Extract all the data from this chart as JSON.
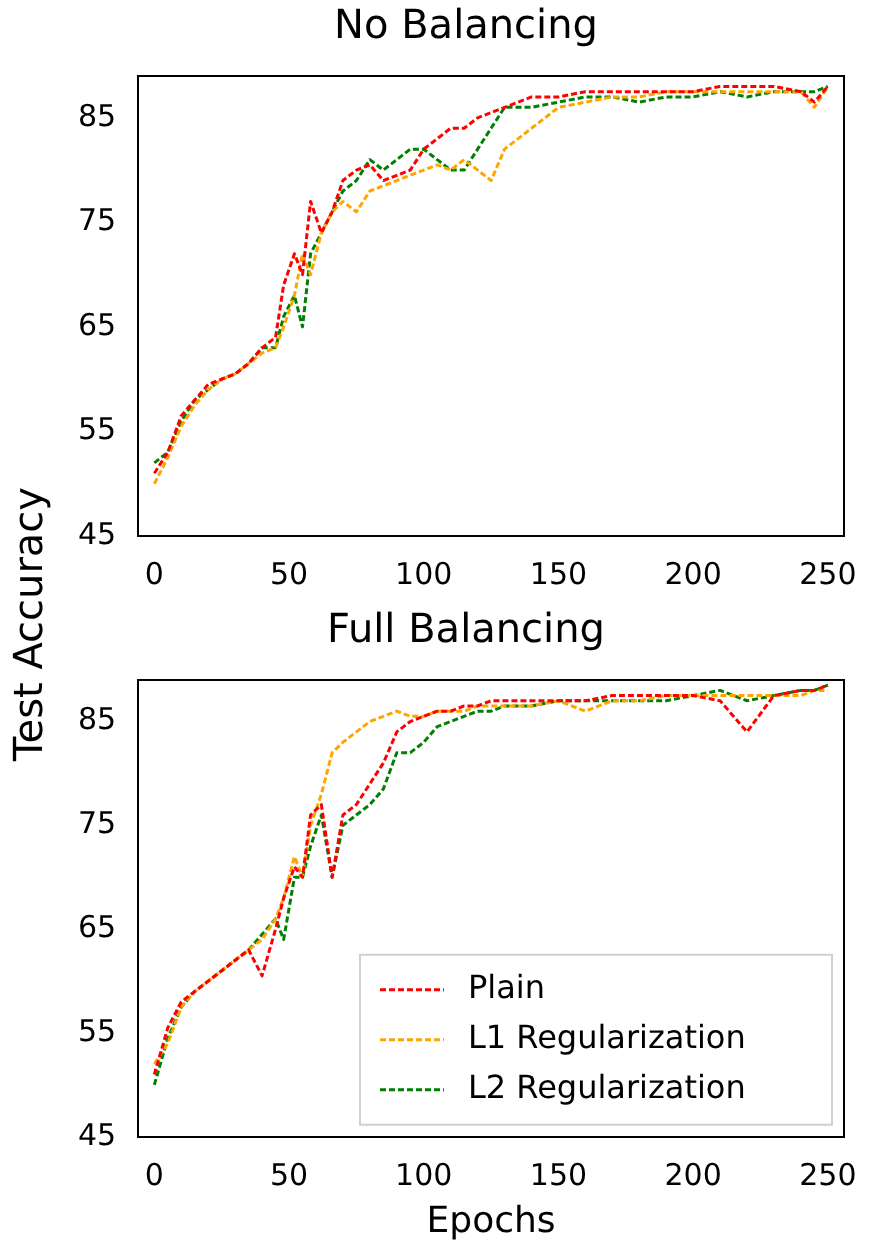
{
  "chart_data": [
    {
      "type": "line",
      "title": "No Balancing",
      "ylabel": "Test Accuracy",
      "x": [
        0,
        5,
        10,
        15,
        20,
        25,
        30,
        35,
        40,
        45,
        48,
        52,
        55,
        58,
        62,
        66,
        70,
        75,
        80,
        85,
        90,
        95,
        100,
        105,
        110,
        115,
        120,
        125,
        130,
        140,
        150,
        160,
        170,
        180,
        190,
        200,
        210,
        220,
        230,
        240,
        245,
        250
      ],
      "series": [
        {
          "color": "#ff0000",
          "values": [
            51,
            53,
            56.5,
            58,
            59.5,
            60,
            60.5,
            61.5,
            63,
            64,
            69,
            72,
            70,
            77,
            74,
            76,
            79,
            80,
            80.5,
            79,
            79.5,
            80,
            82,
            83,
            84,
            84,
            85,
            85.5,
            86,
            87,
            87,
            87.5,
            87.5,
            87.5,
            87.5,
            87.5,
            88,
            88,
            88,
            87.5,
            86.5,
            88
          ]
        },
        {
          "color": "#ffa500",
          "values": [
            50,
            52.5,
            55.5,
            57.5,
            59,
            60,
            60.5,
            61.5,
            62.5,
            63,
            65,
            68,
            72,
            70,
            74,
            76,
            77,
            76,
            78,
            78.5,
            79,
            79.5,
            80,
            80.5,
            80,
            81,
            80,
            79,
            82,
            84,
            86,
            86.5,
            87,
            87,
            87.5,
            87.5,
            87.5,
            87.5,
            87.5,
            87.5,
            86,
            88
          ]
        },
        {
          "color": "#008000",
          "values": [
            52,
            53,
            56,
            58,
            59,
            60,
            60.5,
            61.5,
            63,
            63,
            66,
            68,
            65,
            72,
            74,
            76,
            78,
            79,
            81,
            80,
            81,
            82,
            82,
            81,
            80,
            80,
            82,
            84,
            86,
            86,
            86.5,
            87,
            87,
            86.5,
            87,
            87,
            87.5,
            87,
            87.5,
            87.5,
            87.5,
            88
          ]
        }
      ],
      "xlim": [
        -6,
        256
      ],
      "xticks": [
        0,
        50,
        100,
        150,
        200,
        250
      ],
      "ylim": [
        45,
        89
      ],
      "yticks": [
        45,
        55,
        65,
        75,
        85
      ],
      "grid": false,
      "legend": false,
      "marker": "none",
      "line_style": "dashed"
    },
    {
      "type": "line",
      "title": "Full Balancing",
      "xlabel": "Epochs",
      "x": [
        0,
        5,
        10,
        15,
        20,
        25,
        30,
        35,
        40,
        45,
        48,
        52,
        55,
        58,
        62,
        66,
        70,
        75,
        80,
        85,
        90,
        95,
        100,
        105,
        110,
        115,
        120,
        125,
        130,
        140,
        150,
        160,
        170,
        180,
        190,
        200,
        210,
        220,
        230,
        240,
        245,
        250
      ],
      "series": [
        {
          "name": "Plain",
          "color": "#ff0000",
          "values": [
            51,
            55.5,
            58,
            59,
            60,
            61,
            62,
            63,
            60.5,
            65,
            68,
            71,
            70,
            76,
            77,
            70,
            76,
            77,
            79,
            81,
            84,
            85,
            85.5,
            86,
            86,
            86.5,
            86.5,
            87,
            87,
            87,
            87,
            87,
            87.5,
            87.5,
            87.5,
            87.5,
            87,
            84,
            87.5,
            88,
            88,
            88.5
          ]
        },
        {
          "name": "L1 Regularization",
          "color": "#ffa500",
          "values": [
            52,
            54,
            57.5,
            59,
            60,
            61,
            62,
            63,
            64,
            66,
            68,
            72,
            70,
            75,
            78,
            82,
            83,
            84,
            85,
            85.5,
            86,
            85.5,
            85.5,
            86,
            86,
            86,
            86.5,
            86.5,
            86.5,
            86.5,
            87,
            86,
            87,
            87,
            87.5,
            87.5,
            87.5,
            87.5,
            87.5,
            87.5,
            88,
            88
          ]
        },
        {
          "name": "L2 Regularization",
          "color": "#008000",
          "values": [
            50,
            54.5,
            57.5,
            59,
            60,
            61,
            62,
            63,
            64.5,
            66,
            64,
            70,
            70,
            73,
            76,
            70,
            75,
            76,
            77,
            78.5,
            82,
            82,
            83,
            84.5,
            85,
            85.5,
            86,
            86,
            86.5,
            86.5,
            87,
            87,
            87,
            87,
            87,
            87.5,
            88,
            87,
            87.5,
            88,
            88,
            88.5
          ]
        }
      ],
      "xlim": [
        -6,
        256
      ],
      "xticks": [
        0,
        50,
        100,
        150,
        200,
        250
      ],
      "ylim": [
        45,
        89
      ],
      "yticks": [
        45,
        55,
        65,
        75,
        85
      ],
      "grid": false,
      "legend": "bottom right",
      "marker": "none",
      "line_style": "dashed"
    }
  ]
}
